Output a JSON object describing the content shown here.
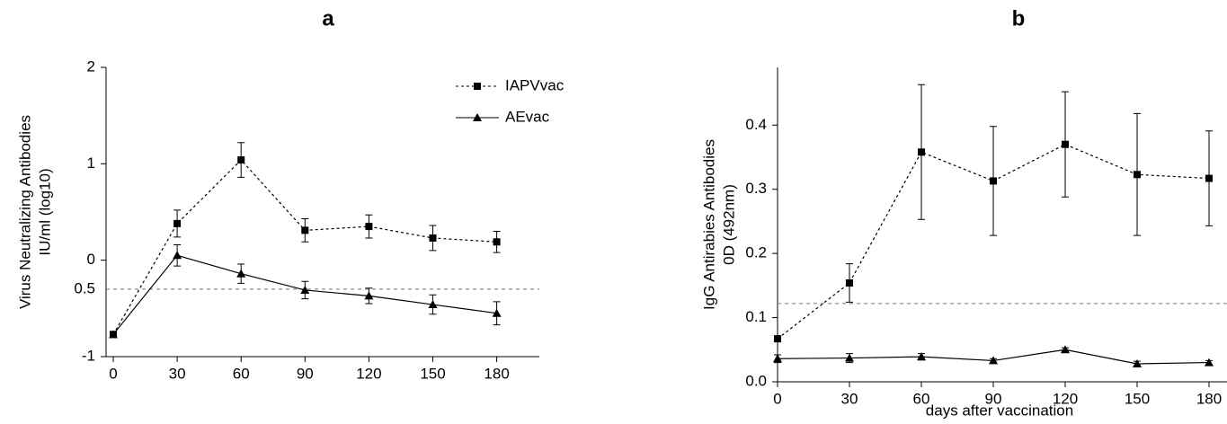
{
  "chart_data": [
    {
      "type": "line",
      "title": "a",
      "ylabel": [
        "Virus Neutralizing Antibodies",
        "IU/ml (log10)"
      ],
      "xlim": [
        0,
        200
      ],
      "xticks": [
        0,
        30,
        60,
        90,
        120,
        150,
        180
      ],
      "ylim": [
        -1,
        2
      ],
      "yticks": [
        -1,
        0,
        1,
        2
      ],
      "threshold": -0.3,
      "threshold_label": "0.5",
      "legend": "upper right",
      "x": [
        0,
        30,
        60,
        90,
        120,
        150,
        180
      ],
      "series": [
        {
          "name": "IAPVvac",
          "color": "#000000",
          "dash": true,
          "marker": "square",
          "values": [
            -0.77,
            0.38,
            1.04,
            0.31,
            0.35,
            0.23,
            0.19
          ],
          "errors": [
            0.02,
            0.14,
            0.18,
            0.12,
            0.12,
            0.13,
            0.11
          ]
        },
        {
          "name": "AEvac",
          "color": "#000000",
          "dash": false,
          "marker": "triangle",
          "values": [
            -0.77,
            0.05,
            -0.14,
            -0.31,
            -0.37,
            -0.46,
            -0.55
          ],
          "errors": [
            0.02,
            0.11,
            0.1,
            0.09,
            0.08,
            0.1,
            0.12
          ]
        }
      ]
    },
    {
      "type": "line",
      "title": "b",
      "ylabel": [
        "IgG Antirabies Antibodies",
        "0D (492nm)"
      ],
      "xlabel": "days after vaccination",
      "xlim": [
        0,
        187.5
      ],
      "xticks": [
        0,
        30,
        60,
        90,
        120,
        150,
        180
      ],
      "ylim": [
        0,
        0.49
      ],
      "yticks": [
        {
          "value": 0,
          "label": "0.0"
        },
        0.1,
        0.2,
        0.3,
        0.4
      ],
      "threshold": 0.122,
      "x": [
        0,
        30,
        60,
        90,
        120,
        150,
        180
      ],
      "series": [
        {
          "color": "#000000",
          "dash": true,
          "marker": "square",
          "values": [
            0.067,
            0.154,
            0.358,
            0.313,
            0.37,
            0.323,
            0.317
          ],
          "errors": [
            0.004,
            0.03,
            0.105,
            0.085,
            0.082,
            0.095,
            0.074
          ]
        },
        {
          "color": "#000000",
          "dash": false,
          "marker": "triangle",
          "values": [
            0.036,
            0.037,
            0.039,
            0.033,
            0.05,
            0.028,
            0.03
          ],
          "errors": [
            0.006,
            0.007,
            0.005,
            0.003,
            0.003,
            0.004,
            0.003
          ]
        }
      ]
    }
  ]
}
